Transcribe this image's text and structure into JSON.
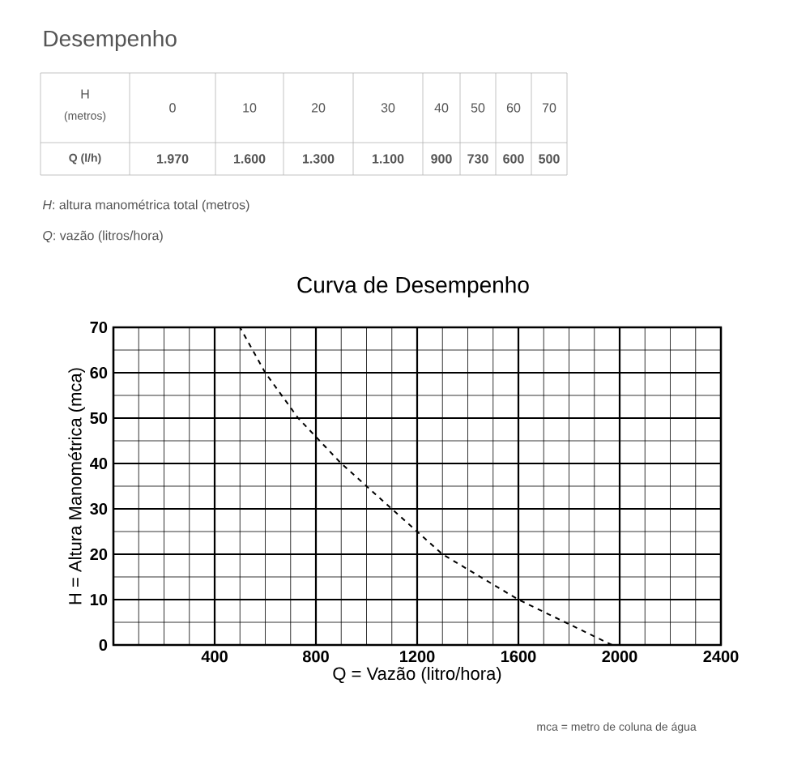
{
  "chart_data": {
    "type": "line",
    "title": "Curva de Desempenho",
    "xlabel": "Q = Vazão (litro/hora)",
    "ylabel": "H = Altura Manométrica (mca)",
    "x": [
      1970,
      1600,
      1300,
      1100,
      900,
      730,
      600,
      500
    ],
    "values": [
      0,
      10,
      20,
      30,
      40,
      50,
      60,
      70
    ],
    "color": "#000000",
    "line_style": "dashed",
    "marker": "none",
    "grid": true,
    "xlim": [
      0,
      2400
    ],
    "xticks": [
      {
        "value": 0,
        "label": null
      },
      400,
      800,
      1200,
      1600,
      2000,
      2400
    ],
    "ylim": [
      0,
      70
    ],
    "yticks": [
      0,
      10,
      20,
      30,
      40,
      50,
      60,
      70
    ],
    "annotations": [
      "Desempenho",
      "H",
      "(metros)",
      "Q (l/h)",
      "0",
      "10",
      "20",
      "30",
      "40",
      "50",
      "60",
      "70",
      "1.970",
      "1.600",
      "1.300",
      "1.100",
      "900",
      "730",
      "600",
      "500",
      "*H*: altura manométrica total (metros)",
      "*Q*: vazão (litros/hora)",
      "mca = metro de coluna de água"
    ]
  }
}
